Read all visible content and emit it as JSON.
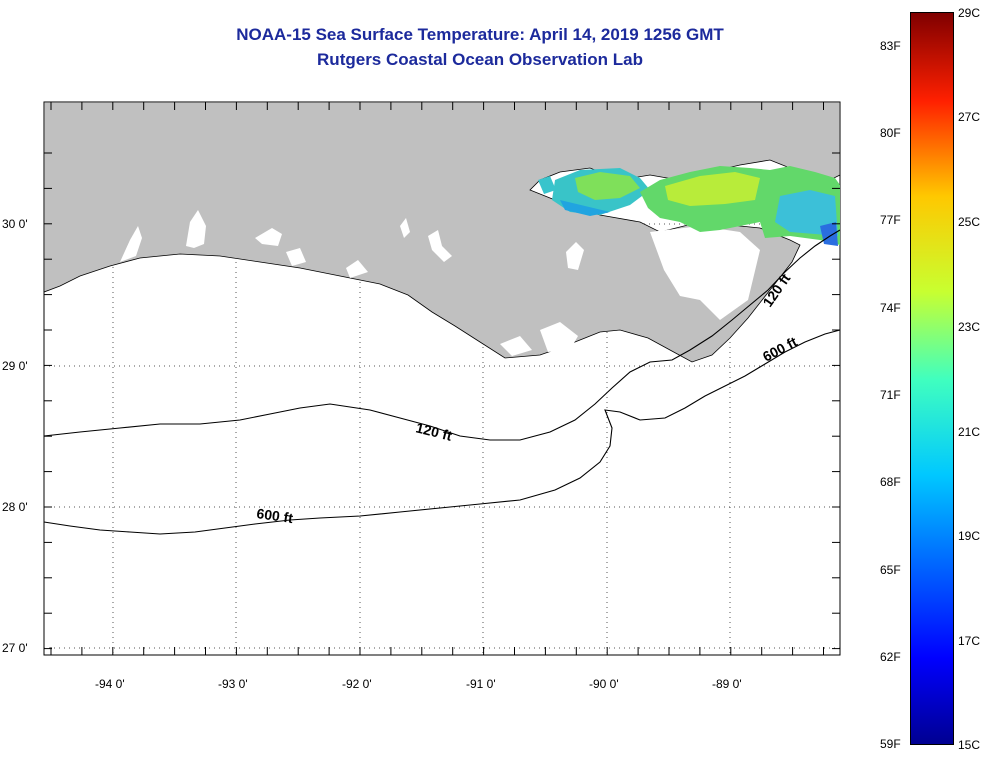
{
  "title": {
    "line1": "NOAA-15 Sea Surface Temperature:  April 14, 2019 1256 GMT",
    "line2": "Rutgers Coastal Ocean Observation Lab"
  },
  "latitude_labels": [
    "30 0'",
    "29 0'",
    "28 0'",
    "27 0'"
  ],
  "longitude_labels": [
    "-94 0'",
    "-93 0'",
    "-92 0'",
    "-91 0'",
    "-90 0'",
    "-89 0'"
  ],
  "contours": {
    "isobath_120_west": "120 ft",
    "isobath_120_east": "120 ft",
    "isobath_600_west": "600 ft",
    "isobath_600_east": "600 ft"
  },
  "colorbar": {
    "fahrenheit": [
      "83F",
      "80F",
      "77F",
      "74F",
      "71F",
      "68F",
      "65F",
      "62F",
      "59F"
    ],
    "celsius": [
      "29C",
      "27C",
      "25C",
      "23C",
      "21C",
      "19C",
      "17C",
      "15C"
    ],
    "min_c": 15,
    "max_c": 29
  },
  "colors": {
    "land": "#c0c0c0",
    "ocean": "#ffffff",
    "title": "#1c2a9c"
  }
}
